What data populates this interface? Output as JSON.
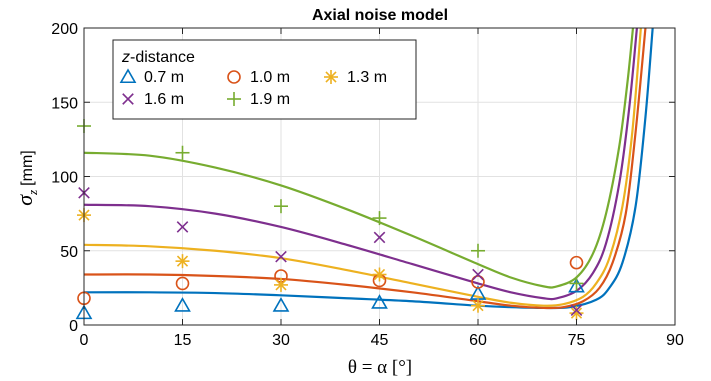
{
  "chart_data": {
    "type": "scatter",
    "title": "Axial noise model",
    "xlabel": "θ = α  [°]",
    "ylabel": "σ_z [mm]",
    "ylabel_main": "σ",
    "ylabel_sub": "z",
    "ylabel_unit": "[mm]",
    "xlim": [
      0,
      90
    ],
    "ylim": [
      0,
      200
    ],
    "xticks": [
      0,
      15,
      30,
      45,
      60,
      75,
      90
    ],
    "yticks": [
      0,
      50,
      100,
      150,
      200
    ],
    "xtick_labels": [
      "0",
      "15",
      "30",
      "45",
      "60",
      "75",
      "90"
    ],
    "ytick_labels": [
      "0",
      "50",
      "100",
      "150",
      "200"
    ],
    "grid": true,
    "legend": {
      "title_italic": "z",
      "title_rest": "-distance",
      "placement": "top-left"
    },
    "series": [
      {
        "name": "0.7 m",
        "marker": "triangle",
        "color": "#0072BD",
        "points": [
          [
            0,
            8
          ],
          [
            15,
            13
          ],
          [
            30,
            13
          ],
          [
            45,
            15
          ],
          [
            60,
            21
          ],
          [
            75,
            26
          ]
        ],
        "curve": [
          [
            0,
            22
          ],
          [
            10,
            22
          ],
          [
            20,
            21.5
          ],
          [
            30,
            20
          ],
          [
            40,
            18
          ],
          [
            50,
            16
          ],
          [
            60,
            13
          ],
          [
            65,
            12
          ],
          [
            70,
            11.5
          ],
          [
            74,
            12
          ],
          [
            78,
            17
          ],
          [
            80,
            25
          ],
          [
            82,
            42
          ],
          [
            84,
            80
          ],
          [
            85.5,
            140
          ],
          [
            86.6,
            200
          ]
        ]
      },
      {
        "name": "1.0 m",
        "marker": "circle",
        "color": "#D95319",
        "points": [
          [
            0,
            18
          ],
          [
            15,
            28
          ],
          [
            30,
            33
          ],
          [
            45,
            30
          ],
          [
            60,
            29
          ],
          [
            75,
            42
          ]
        ],
        "curve": [
          [
            0,
            34
          ],
          [
            10,
            34
          ],
          [
            20,
            33
          ],
          [
            30,
            31
          ],
          [
            40,
            27
          ],
          [
            50,
            22
          ],
          [
            60,
            16
          ],
          [
            65,
            13
          ],
          [
            70,
            11.5
          ],
          [
            73,
            12
          ],
          [
            76,
            16
          ],
          [
            78.5,
            25
          ],
          [
            80.5,
            42
          ],
          [
            82.5,
            75
          ],
          [
            84,
            130
          ],
          [
            85.5,
            200
          ]
        ]
      },
      {
        "name": "1.3 m",
        "marker": "asterisk",
        "color": "#EDB120",
        "points": [
          [
            0,
            74
          ],
          [
            15,
            43
          ],
          [
            30,
            27
          ],
          [
            45,
            34
          ],
          [
            60,
            13
          ],
          [
            75,
            8
          ]
        ],
        "curve": [
          [
            0,
            54
          ],
          [
            10,
            53
          ],
          [
            20,
            50
          ],
          [
            30,
            45
          ],
          [
            40,
            37
          ],
          [
            50,
            28
          ],
          [
            60,
            19
          ],
          [
            65,
            15
          ],
          [
            70,
            13
          ],
          [
            73,
            14
          ],
          [
            76,
            19
          ],
          [
            78,
            28
          ],
          [
            80,
            45
          ],
          [
            82,
            80
          ],
          [
            83.5,
            130
          ],
          [
            84.8,
            200
          ]
        ]
      },
      {
        "name": "1.6 m",
        "marker": "x",
        "color": "#7E2F8E",
        "points": [
          [
            0,
            89
          ],
          [
            15,
            66
          ],
          [
            30,
            46
          ],
          [
            45,
            59
          ],
          [
            60,
            34
          ],
          [
            75,
            10
          ]
        ],
        "curve": [
          [
            0,
            81
          ],
          [
            10,
            80
          ],
          [
            20,
            75
          ],
          [
            30,
            66
          ],
          [
            40,
            54
          ],
          [
            50,
            41
          ],
          [
            60,
            28
          ],
          [
            65,
            22
          ],
          [
            70,
            18
          ],
          [
            72,
            18
          ],
          [
            75,
            23
          ],
          [
            77.5,
            35
          ],
          [
            79.5,
            55
          ],
          [
            81.5,
            95
          ],
          [
            83,
            145
          ],
          [
            84.2,
            200
          ]
        ]
      },
      {
        "name": "1.9 m",
        "marker": "plus",
        "color": "#77AC30",
        "points": [
          [
            0,
            134
          ],
          [
            15,
            116
          ],
          [
            30,
            80
          ],
          [
            45,
            72
          ],
          [
            60,
            50
          ],
          [
            75,
            28
          ]
        ],
        "curve": [
          [
            0,
            116
          ],
          [
            10,
            114
          ],
          [
            20,
            106
          ],
          [
            30,
            94
          ],
          [
            40,
            78
          ],
          [
            50,
            60
          ],
          [
            60,
            41
          ],
          [
            65,
            32
          ],
          [
            70,
            26
          ],
          [
            72,
            26
          ],
          [
            75,
            32
          ],
          [
            77.5,
            48
          ],
          [
            79.5,
            75
          ],
          [
            81.5,
            120
          ],
          [
            82.8,
            165
          ],
          [
            83.6,
            200
          ]
        ]
      }
    ]
  }
}
